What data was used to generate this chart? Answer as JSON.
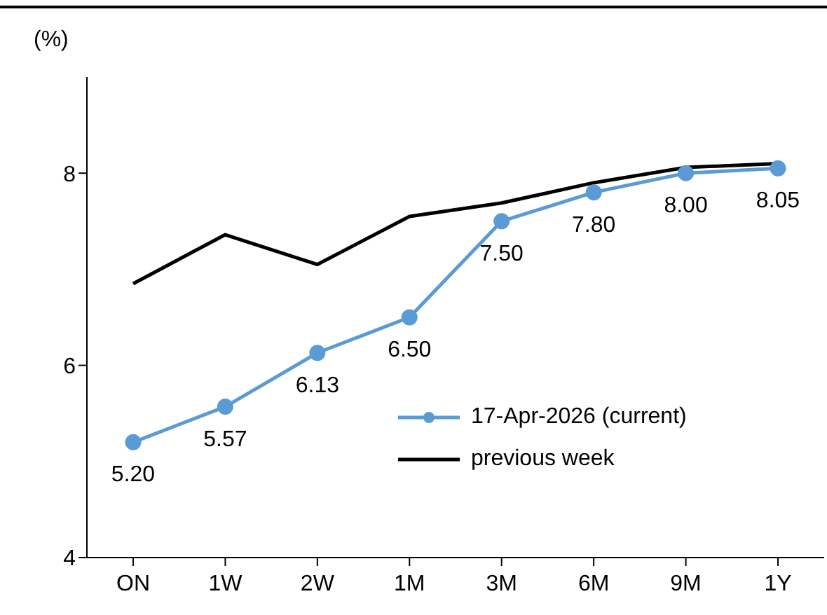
{
  "chart_data": {
    "type": "line",
    "ylabel": "(%)",
    "categories": [
      "ON",
      "1W",
      "2W",
      "1M",
      "3M",
      "6M",
      "9M",
      "1Y"
    ],
    "series": [
      {
        "name": "17-Apr-2026 (current)",
        "color": "#5b9bd5",
        "marker": "circle",
        "values": [
          5.2,
          5.57,
          6.13,
          6.5,
          7.5,
          7.8,
          8.0,
          8.05
        ],
        "value_labels": [
          "5.20",
          "5.57",
          "6.13",
          "6.50",
          "7.50",
          "7.80",
          "8.00",
          "8.05"
        ]
      },
      {
        "name": "previous week",
        "color": "#000000",
        "marker": "none",
        "values": [
          6.85,
          7.36,
          7.05,
          7.55,
          7.69,
          7.9,
          8.06,
          8.1
        ]
      }
    ],
    "ylim": [
      4,
      9
    ],
    "yticks": [
      4,
      6,
      8
    ],
    "grid": false,
    "legend": "bottom right"
  }
}
